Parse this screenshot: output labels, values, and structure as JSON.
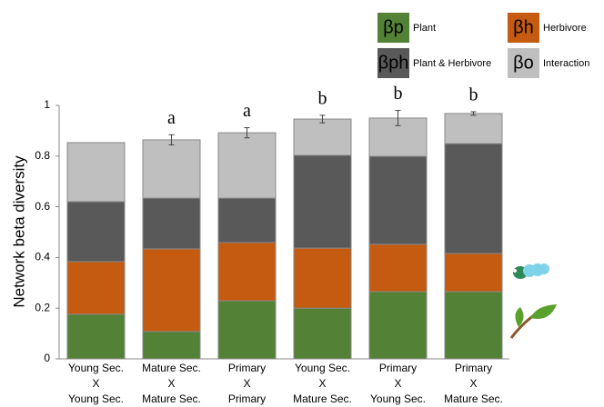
{
  "chart_data": {
    "type": "stacked_bar",
    "y_label": "Network beta diversity",
    "categories": [
      [
        "Young Sec.",
        "X",
        "Young Sec."
      ],
      [
        "Mature Sec.",
        "X",
        "Mature Sec."
      ],
      [
        "Primary",
        "X",
        "Primary"
      ],
      [
        "Young Sec.",
        "X",
        "Mature Sec."
      ],
      [
        "Primary",
        "X",
        "Young Sec."
      ],
      [
        "Primary",
        "X",
        "Mature Sec."
      ]
    ],
    "series": [
      {
        "name": "Plant",
        "symbol": "βp",
        "color": "#538135",
        "values": [
          0.176,
          0.108,
          0.229,
          0.2,
          0.265,
          0.265
        ]
      },
      {
        "name": "Herbivore",
        "symbol": "βh",
        "color": "#c55a11",
        "values": [
          0.208,
          0.326,
          0.23,
          0.237,
          0.187,
          0.151
        ]
      },
      {
        "name": "Plant & Herbivore",
        "symbol": "βph",
        "color": "#595959",
        "values": [
          0.236,
          0.2,
          0.175,
          0.366,
          0.347,
          0.433
        ]
      },
      {
        "name": "Interaction",
        "symbol": "βo",
        "color": "#bfbfbf",
        "values": [
          0.233,
          0.23,
          0.258,
          0.143,
          0.151,
          0.119
        ]
      }
    ],
    "errors": [
      null,
      0.02,
      0.02,
      0.015,
      0.03,
      0.007
    ],
    "annotations": [
      null,
      "a",
      "a",
      "b",
      "b",
      "b"
    ],
    "ylim": [
      0,
      1
    ],
    "yticks": [
      0,
      0.2,
      0.4,
      0.6,
      0.8,
      1
    ],
    "grid": false
  }
}
